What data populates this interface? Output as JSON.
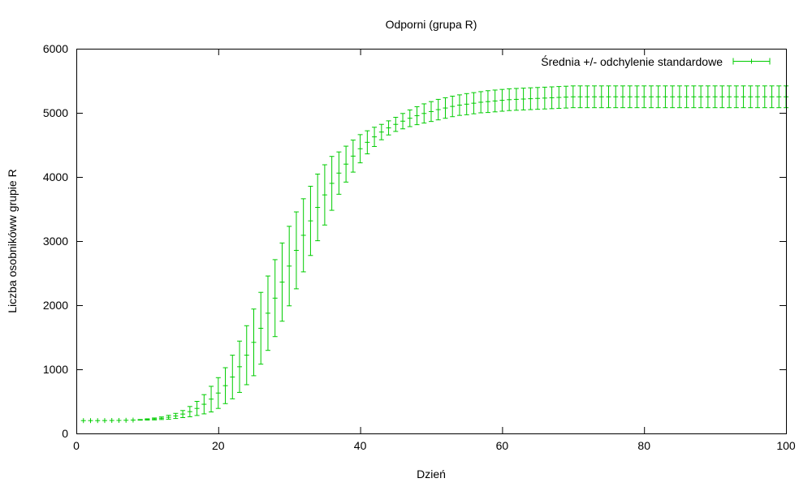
{
  "chart_data": {
    "type": "line",
    "title": "Odporni (grupa R)",
    "xlabel": "Dzień",
    "ylabel": "Liczba osobników­w grupie R",
    "xlim": [
      0,
      100
    ],
    "ylim": [
      0,
      6000
    ],
    "x_ticks": [
      "0",
      "20",
      "40",
      "60",
      "80",
      "100"
    ],
    "y_ticks": [
      "0",
      "1000",
      "2000",
      "3000",
      "4000",
      "5000",
      "6000"
    ],
    "grid": false,
    "legend_position": "top-right",
    "series": [
      {
        "name": "Średnia +/- odchylenie standardowe",
        "color": "#00cc00",
        "style": "errorbars",
        "x": [
          1,
          2,
          3,
          4,
          5,
          6,
          7,
          8,
          9,
          10,
          11,
          12,
          13,
          14,
          15,
          16,
          17,
          18,
          19,
          20,
          21,
          22,
          23,
          24,
          25,
          26,
          27,
          28,
          29,
          30,
          31,
          32,
          33,
          34,
          35,
          36,
          37,
          38,
          39,
          40,
          41,
          42,
          43,
          44,
          45,
          46,
          47,
          48,
          49,
          50,
          51,
          52,
          53,
          54,
          55,
          56,
          57,
          58,
          59,
          60,
          61,
          62,
          63,
          64,
          65,
          66,
          67,
          68,
          69,
          70,
          71,
          72,
          73,
          74,
          75,
          76,
          77,
          78,
          79,
          80,
          81,
          82,
          83,
          84,
          85,
          86,
          87,
          88,
          89,
          90,
          91,
          92,
          93,
          94,
          95,
          96,
          97,
          98,
          99,
          100
        ],
        "y": [
          200,
          200,
          200,
          201,
          202,
          203,
          205,
          208,
          212,
          218,
          226,
          237,
          252,
          273,
          302,
          340,
          390,
          455,
          535,
          630,
          745,
          880,
          1040,
          1220,
          1420,
          1640,
          1875,
          2110,
          2360,
          2610,
          2855,
          3090,
          3315,
          3525,
          3720,
          3900,
          4060,
          4200,
          4325,
          4440,
          4540,
          4625,
          4700,
          4765,
          4820,
          4870,
          4915,
          4955,
          4990,
          5020,
          5050,
          5075,
          5100,
          5120,
          5135,
          5150,
          5165,
          5175,
          5185,
          5195,
          5205,
          5210,
          5215,
          5220,
          5225,
          5230,
          5235,
          5240,
          5245,
          5250,
          5250,
          5250,
          5250,
          5250,
          5250,
          5250,
          5250,
          5250,
          5250,
          5250,
          5250,
          5250,
          5250,
          5250,
          5250,
          5250,
          5250,
          5250,
          5250,
          5250,
          5250,
          5250,
          5250,
          5250,
          5250,
          5250,
          5250,
          5250,
          5250,
          5250
        ],
        "err": [
          0,
          0,
          0,
          0,
          0,
          0,
          0,
          0,
          5,
          10,
          15,
          20,
          30,
          40,
          55,
          80,
          110,
          150,
          200,
          240,
          280,
          340,
          400,
          460,
          520,
          560,
          580,
          600,
          610,
          620,
          600,
          570,
          540,
          520,
          470,
          420,
          330,
          280,
          250,
          220,
          180,
          150,
          120,
          110,
          110,
          120,
          130,
          140,
          150,
          155,
          160,
          160,
          160,
          160,
          165,
          165,
          165,
          170,
          170,
          170,
          170,
          170,
          170,
          170,
          170,
          170,
          170,
          170,
          170,
          170,
          170,
          170,
          170,
          170,
          170,
          170,
          170,
          170,
          170,
          170,
          170,
          170,
          170,
          170,
          170,
          170,
          170,
          170,
          170,
          170,
          170,
          170,
          170,
          170,
          170,
          170,
          170,
          170,
          170,
          170
        ]
      }
    ]
  }
}
